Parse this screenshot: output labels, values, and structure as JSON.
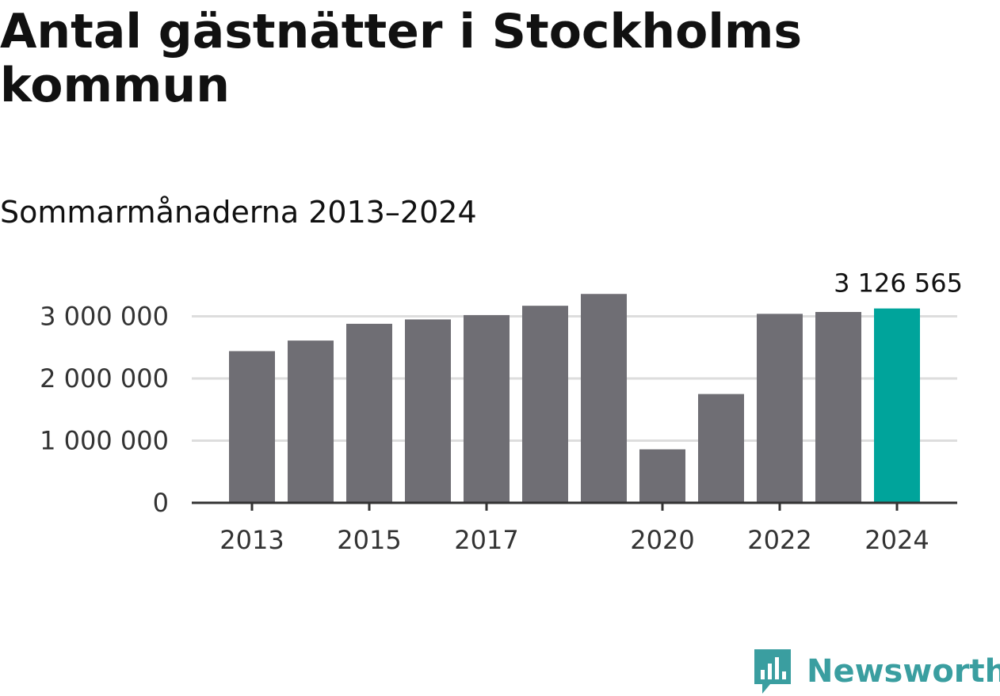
{
  "title": "Antal gästnätter i Stockholms kommun",
  "subtitle": "Sommarmånaderna 2013–2024",
  "colors": {
    "bar": "#6f6e74",
    "highlight": "#00a49b",
    "grid": "#dddddd",
    "axis": "#333333",
    "brand": "#3a9ea0"
  },
  "logo": {
    "text": "Newsworthy",
    "icon": "newsworthy-chart-bubble-icon"
  },
  "chart_data": {
    "type": "bar",
    "categories": [
      "2013",
      "2014",
      "2015",
      "2016",
      "2017",
      "2018",
      "2019",
      "2020",
      "2021",
      "2022",
      "2023",
      "2024"
    ],
    "values": [
      2440000,
      2610000,
      2880000,
      2950000,
      3020000,
      3170000,
      3360000,
      860000,
      1750000,
      3040000,
      3070000,
      3126565
    ],
    "highlight_index": 11,
    "data_labels": [
      {
        "index": 11,
        "text": "3 126 565"
      }
    ],
    "xtick_labels": [
      "2013",
      "",
      "2015",
      "",
      "2017",
      "",
      "",
      "2020",
      "",
      "2022",
      "",
      "2024"
    ],
    "yticks": [
      0,
      1000000,
      2000000,
      3000000
    ],
    "ytick_labels": [
      "0",
      "1 000 000",
      "2 000 000",
      "3 000 000"
    ],
    "ylim": [
      0,
      3400000
    ],
    "grid": true,
    "xlabel": "",
    "ylabel": ""
  }
}
